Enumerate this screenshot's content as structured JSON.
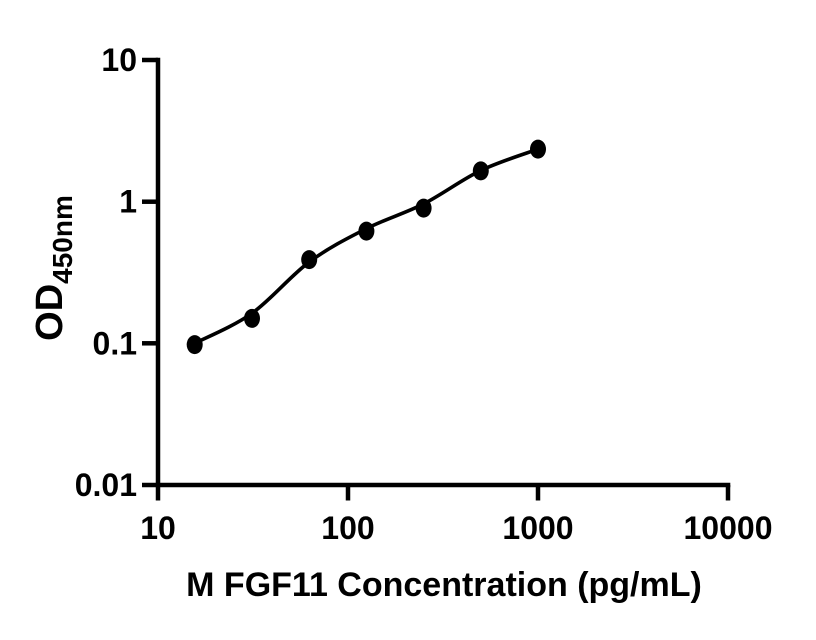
{
  "figure": {
    "background": "#ffffff"
  },
  "chart_data": {
    "type": "scatter",
    "title": "",
    "xlabel": "M FGF11 Concentration (pg/mL)",
    "ylabel_main": "OD",
    "ylabel_sub": "450nm",
    "x_scale": "log10",
    "y_scale": "log10",
    "xlim": [
      10,
      10000
    ],
    "ylim": [
      0.01,
      10
    ],
    "grid": false,
    "legend": "none",
    "point_color": "#000000",
    "line_color": "#000000",
    "x_ticks": [
      {
        "value": 10,
        "label": "10"
      },
      {
        "value": 100,
        "label": "100"
      },
      {
        "value": 1000,
        "label": "1000"
      },
      {
        "value": 10000,
        "label": "10000"
      }
    ],
    "y_ticks": [
      {
        "value": 10,
        "label": "10"
      },
      {
        "value": 1,
        "label": "1"
      },
      {
        "value": 0.1,
        "label": "0.1"
      },
      {
        "value": 0.01,
        "label": "0.01"
      }
    ],
    "series": [
      {
        "name": "standard-points",
        "marker": "filled-circle",
        "x": [
          15.6,
          31.25,
          62.5,
          125,
          250,
          500,
          1000
        ],
        "y": [
          0.098,
          0.15,
          0.39,
          0.62,
          0.9,
          1.65,
          2.35
        ]
      }
    ],
    "fit_curve": {
      "name": "fitted-standard-curve",
      "x": [
        15.6,
        31.25,
        62.5,
        125,
        250,
        500,
        1000
      ],
      "y": [
        0.1,
        0.163,
        0.375,
        0.645,
        0.965,
        1.66,
        2.35
      ]
    }
  }
}
